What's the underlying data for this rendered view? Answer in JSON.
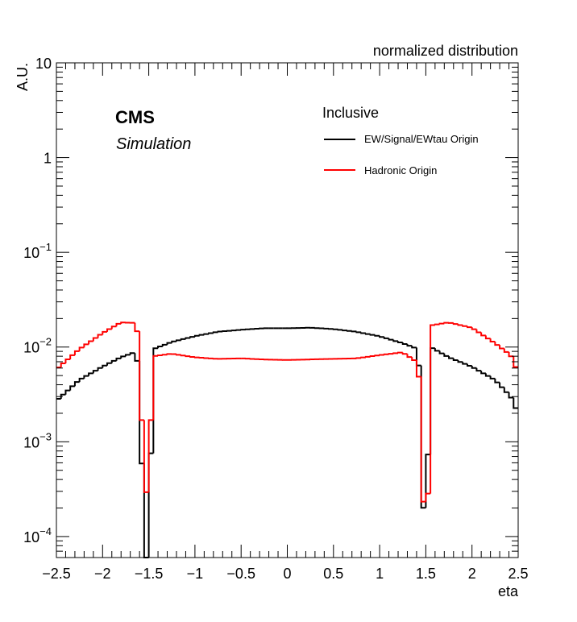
{
  "chart_data": {
    "type": "line",
    "title": "normalized distribution",
    "xlabel": "eta",
    "ylabel": "A.U.",
    "xlim": [
      -2.5,
      2.5
    ],
    "ylim": [
      6e-05,
      10
    ],
    "yscale": "log",
    "grid": false,
    "x_ticks": [
      {
        "value": -2.5,
        "label": "−2.5"
      },
      {
        "value": -2,
        "label": "−2"
      },
      {
        "value": -1.5,
        "label": "−1.5"
      },
      {
        "value": -1,
        "label": "−1"
      },
      {
        "value": -0.5,
        "label": "−0.5"
      },
      {
        "value": 0,
        "label": "0"
      },
      {
        "value": 0.5,
        "label": "0.5"
      },
      {
        "value": 1,
        "label": "1"
      },
      {
        "value": 1.5,
        "label": "1.5"
      },
      {
        "value": 2,
        "label": "2"
      },
      {
        "value": 2.5,
        "label": "2.5"
      }
    ],
    "y_ticks": [
      {
        "value": 10,
        "base": "10",
        "exp": ""
      },
      {
        "value": 1,
        "base": "1",
        "exp": ""
      },
      {
        "value": 0.1,
        "base": "10",
        "exp": "−1"
      },
      {
        "value": 0.01,
        "base": "10",
        "exp": "−2"
      },
      {
        "value": 0.001,
        "base": "10",
        "exp": "−3"
      },
      {
        "value": 0.0001,
        "base": "10",
        "exp": "−4"
      }
    ],
    "annotations": {
      "experiment": "CMS",
      "label": "Simulation",
      "legend_header": "Inclusive"
    },
    "legend_position": "top-right",
    "series": [
      {
        "name": "EW/Signal/EWtau Origin",
        "color": "#000000",
        "points": [
          [
            -2.5,
            0.0027
          ],
          [
            -2.25,
            0.0045
          ],
          [
            -2.0,
            0.0062
          ],
          [
            -1.8,
            0.0078
          ],
          [
            -1.65,
            0.0088
          ],
          [
            -1.6,
            0.0058
          ],
          [
            -1.55,
            6e-05
          ],
          [
            -1.5,
            6e-05
          ],
          [
            -1.45,
            0.0095
          ],
          [
            -1.25,
            0.0113
          ],
          [
            -1.0,
            0.013
          ],
          [
            -0.75,
            0.0145
          ],
          [
            -0.5,
            0.0152
          ],
          [
            -0.25,
            0.0158
          ],
          [
            0.0,
            0.0158
          ],
          [
            0.25,
            0.016
          ],
          [
            0.5,
            0.0155
          ],
          [
            0.75,
            0.0145
          ],
          [
            1.0,
            0.013
          ],
          [
            1.25,
            0.011
          ],
          [
            1.42,
            0.0095
          ],
          [
            1.47,
            0.00018
          ],
          [
            1.52,
            0.00055
          ],
          [
            1.57,
            0.0098
          ],
          [
            1.75,
            0.0078
          ],
          [
            2.0,
            0.0062
          ],
          [
            2.25,
            0.0045
          ],
          [
            2.42,
            0.003
          ],
          [
            2.5,
            0.002
          ]
        ]
      },
      {
        "name": "Hadronic Origin",
        "color": "#ff0000",
        "points": [
          [
            -2.5,
            0.0058
          ],
          [
            -2.25,
            0.0095
          ],
          [
            -2.0,
            0.014
          ],
          [
            -1.8,
            0.0182
          ],
          [
            -1.65,
            0.018
          ],
          [
            -1.6,
            0.012
          ],
          [
            -1.55,
            0.00024
          ],
          [
            -1.5,
            0.00036
          ],
          [
            -1.45,
            0.008
          ],
          [
            -1.25,
            0.0085
          ],
          [
            -1.0,
            0.0078
          ],
          [
            -0.75,
            0.0075
          ],
          [
            -0.5,
            0.0076
          ],
          [
            -0.25,
            0.0074
          ],
          [
            0.0,
            0.0073
          ],
          [
            0.25,
            0.0074
          ],
          [
            0.5,
            0.0075
          ],
          [
            0.75,
            0.0076
          ],
          [
            1.0,
            0.0082
          ],
          [
            1.25,
            0.0088
          ],
          [
            1.42,
            0.0068
          ],
          [
            1.47,
            0.00024
          ],
          [
            1.52,
            0.00018
          ],
          [
            1.57,
            0.017
          ],
          [
            1.75,
            0.0182
          ],
          [
            2.0,
            0.016
          ],
          [
            2.25,
            0.011
          ],
          [
            2.42,
            0.0082
          ],
          [
            2.5,
            0.0054
          ]
        ]
      }
    ]
  }
}
